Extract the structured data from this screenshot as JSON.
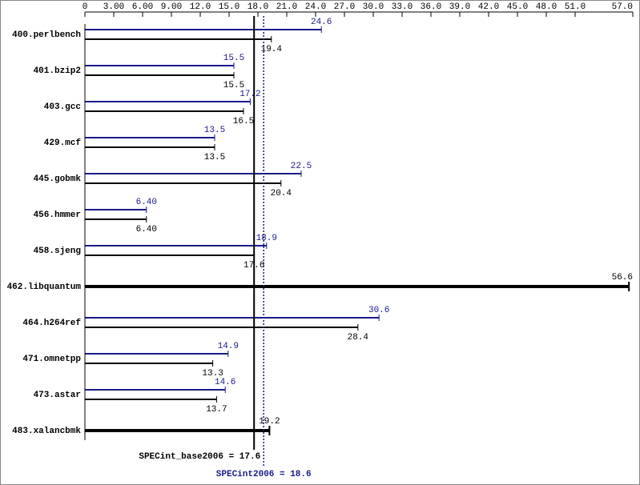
{
  "chart_data": {
    "type": "bar",
    "categories": [
      "400.perlbench",
      "401.bzip2",
      "403.gcc",
      "429.mcf",
      "445.gobmk",
      "456.hmmer",
      "458.sjeng",
      "462.libquantum",
      "464.h264ref",
      "471.omnetpp",
      "473.astar",
      "483.xalancbmk"
    ],
    "series": [
      {
        "color": "#1a1a8c",
        "values": [
          24.6,
          15.5,
          17.2,
          13.5,
          22.5,
          6.4,
          18.9,
          null,
          30.6,
          14.9,
          14.6,
          null
        ],
        "value_labels": [
          "24.6",
          "15.5",
          "17.2",
          "13.5",
          "22.5",
          "6.40",
          "18.9",
          null,
          "30.6",
          "14.9",
          "14.6",
          null
        ]
      },
      {
        "color": "#000000",
        "values": [
          19.4,
          15.5,
          16.5,
          13.5,
          20.4,
          6.4,
          17.6,
          56.6,
          28.4,
          13.3,
          13.7,
          19.2
        ],
        "value_labels": [
          "19.4",
          "15.5",
          "16.5",
          "13.5",
          "20.4",
          "6.40",
          "17.6",
          "56.6",
          "28.4",
          "13.3",
          "13.7",
          "19.2"
        ]
      }
    ],
    "xlim": [
      0,
      57
    ],
    "xticks": [
      0,
      {
        "value": 3,
        "label": "3.00"
      },
      {
        "value": 6,
        "label": "6.00"
      },
      {
        "value": 9,
        "label": "9.00"
      },
      {
        "value": 12,
        "label": "12.0"
      },
      {
        "value": 15,
        "label": "15.0"
      },
      {
        "value": 18,
        "label": "18.0"
      },
      {
        "value": 21,
        "label": "21.0"
      },
      {
        "value": 24,
        "label": "24.0"
      },
      {
        "value": 27,
        "label": "27.0"
      },
      {
        "value": 30,
        "label": "30.0"
      },
      {
        "value": 33,
        "label": "33.0"
      },
      {
        "value": 36,
        "label": "36.0"
      },
      {
        "value": 39,
        "label": "39.0"
      },
      {
        "value": 42,
        "label": "42.0"
      },
      {
        "value": 45,
        "label": "45.0"
      },
      {
        "value": 48,
        "label": "48.0"
      },
      {
        "value": 51,
        "label": "51.0"
      },
      {
        "value": 57,
        "label": "57.0"
      }
    ],
    "reference_lines": [
      {
        "label": "SPECint_base2006 = 17.6",
        "value": 17.6,
        "color": "#000000",
        "dashed": false
      },
      {
        "label": "SPECint2006 = 18.6",
        "value": 18.6,
        "color": "#1a1a8c",
        "dashed": true
      }
    ]
  }
}
